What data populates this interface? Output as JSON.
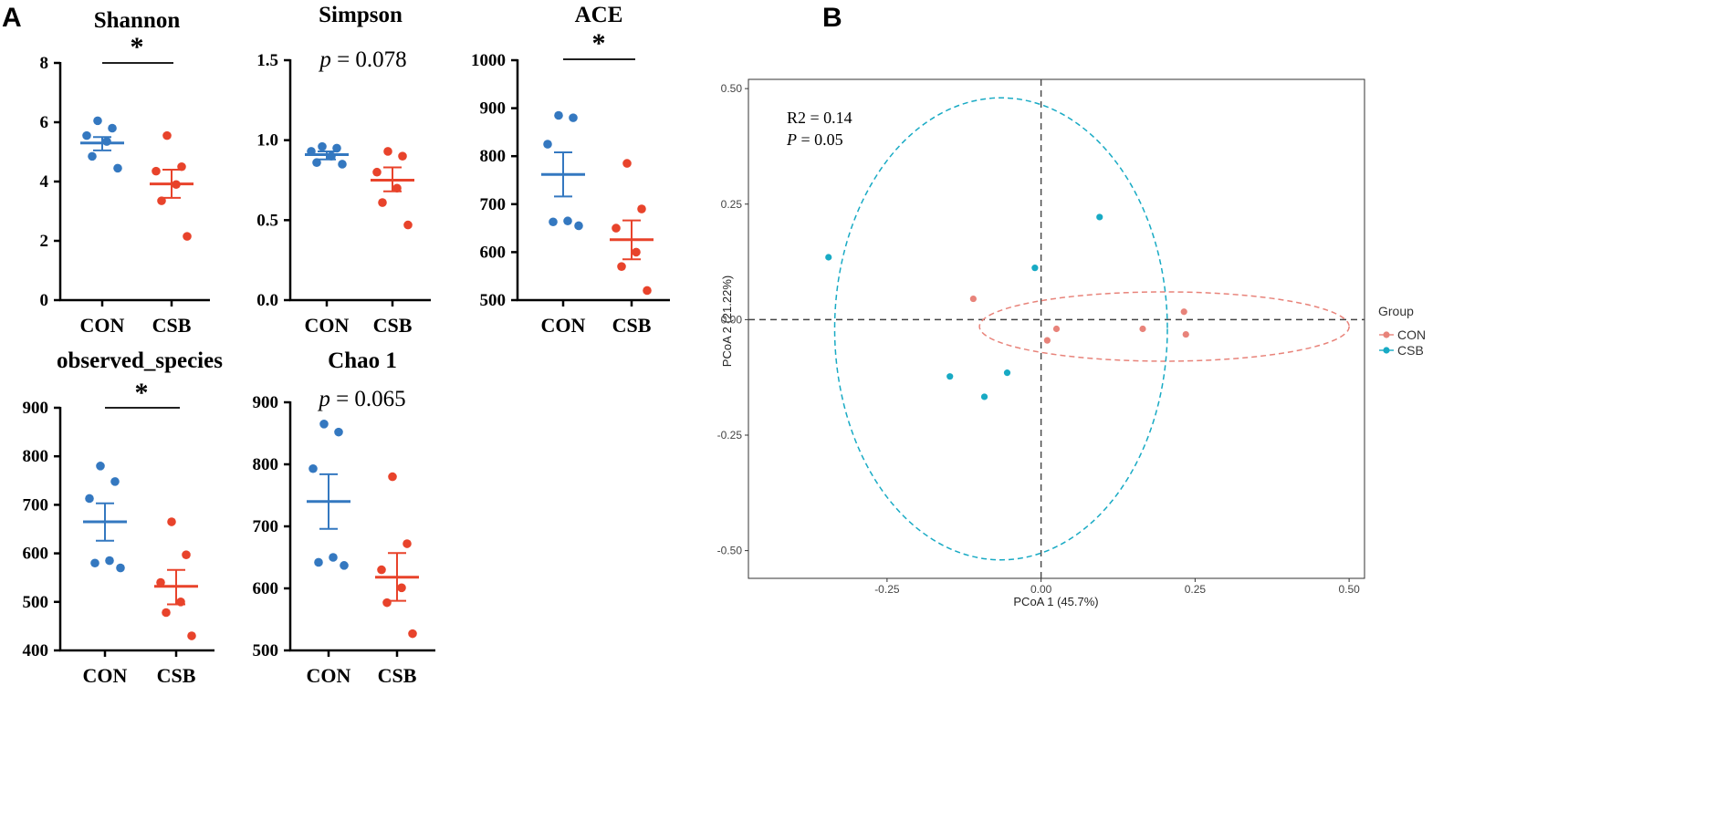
{
  "panels": {
    "a_label": "A",
    "b_label": "B"
  },
  "colors": {
    "con_dot": "#3478c0",
    "csb_dot": "#e8432b",
    "pcoa_con": "#e8837a",
    "pcoa_csb": "#18aac4"
  },
  "chart_data": [
    {
      "type": "scatter",
      "id": "shannon",
      "title": "Shannon",
      "categories": [
        "CON",
        "CSB"
      ],
      "ylim": [
        0,
        8
      ],
      "yticks": [
        "0",
        "2",
        "4",
        "6",
        "8"
      ],
      "tick_values": [
        0,
        2,
        4,
        6,
        8
      ],
      "series": [
        {
          "name": "CON",
          "values": [
            6.05,
            5.8,
            5.55,
            5.35,
            4.85,
            4.45
          ],
          "mean": 5.3,
          "sem_low": 5.05,
          "sem_high": 5.5
        },
        {
          "name": "CSB",
          "values": [
            5.55,
            4.5,
            4.35,
            3.9,
            3.35,
            2.15
          ],
          "mean": 3.92,
          "sem_low": 3.45,
          "sem_high": 4.4
        }
      ],
      "annotation": "*",
      "significance_bar": true
    },
    {
      "type": "scatter",
      "id": "simpson",
      "title": "Simpson",
      "categories": [
        "CON",
        "CSB"
      ],
      "ylim": [
        0.0,
        1.5
      ],
      "yticks": [
        "0.0",
        "0.5",
        "1.0",
        "1.5"
      ],
      "tick_values": [
        0.0,
        0.5,
        1.0,
        1.5
      ],
      "series": [
        {
          "name": "CON",
          "values": [
            0.96,
            0.95,
            0.93,
            0.9,
            0.86,
            0.85
          ],
          "mean": 0.91,
          "sem_low": 0.88,
          "sem_high": 0.93
        },
        {
          "name": "CSB",
          "values": [
            0.93,
            0.9,
            0.8,
            0.7,
            0.61,
            0.47
          ],
          "mean": 0.75,
          "sem_low": 0.68,
          "sem_high": 0.83
        }
      ],
      "annotation_p": "p",
      "annotation_rest": " = 0.078",
      "significance_bar": false
    },
    {
      "type": "scatter",
      "id": "ace",
      "title": "ACE",
      "categories": [
        "CON",
        "CSB"
      ],
      "ylim": [
        500,
        1000
      ],
      "yticks": [
        "500",
        "600",
        "700",
        "800",
        "900",
        "1000"
      ],
      "tick_values": [
        500,
        600,
        700,
        800,
        900,
        1000
      ],
      "series": [
        {
          "name": "CON",
          "values": [
            885,
            880,
            825,
            665,
            663,
            655
          ],
          "mean": 762,
          "sem_low": 716,
          "sem_high": 808
        },
        {
          "name": "CSB",
          "values": [
            785,
            690,
            650,
            600,
            570,
            520
          ],
          "mean": 626,
          "sem_low": 585,
          "sem_high": 666
        }
      ],
      "annotation": "*",
      "significance_bar": true
    },
    {
      "type": "scatter",
      "id": "observed_species",
      "title": "observed_species",
      "categories": [
        "CON",
        "CSB"
      ],
      "ylim": [
        400,
        900
      ],
      "yticks": [
        "400",
        "500",
        "600",
        "700",
        "800",
        "900"
      ],
      "tick_values": [
        400,
        500,
        600,
        700,
        800,
        900
      ],
      "series": [
        {
          "name": "CON",
          "values": [
            780,
            748,
            713,
            585,
            580,
            570
          ],
          "mean": 665,
          "sem_low": 626,
          "sem_high": 703
        },
        {
          "name": "CSB",
          "values": [
            665,
            597,
            540,
            500,
            478,
            430
          ],
          "mean": 532,
          "sem_low": 495,
          "sem_high": 566
        }
      ],
      "annotation": "*",
      "significance_bar": true
    },
    {
      "type": "scatter",
      "id": "chao1",
      "title": "Chao 1",
      "categories": [
        "CON",
        "CSB"
      ],
      "ylim": [
        500,
        900
      ],
      "yticks": [
        "500",
        "600",
        "700",
        "800",
        "900"
      ],
      "tick_values": [
        500,
        600,
        700,
        800,
        900
      ],
      "series": [
        {
          "name": "CON",
          "values": [
            865,
            852,
            793,
            650,
            642,
            637
          ],
          "mean": 740,
          "sem_low": 696,
          "sem_high": 784
        },
        {
          "name": "CSB",
          "values": [
            780,
            672,
            630,
            601,
            577,
            527
          ],
          "mean": 618,
          "sem_low": 580,
          "sem_high": 657
        }
      ],
      "annotation_p": "p",
      "annotation_rest": " = 0.065",
      "significance_bar": false
    },
    {
      "type": "scatter",
      "id": "pcoa",
      "xlabel": "PCoA 1 (45.7%)",
      "ylabel": "PCoA 2 (21.22%)",
      "xlim": [
        -0.475,
        0.525
      ],
      "ylim": [
        -0.56,
        0.52
      ],
      "xticks": [
        "-0.25",
        "0.00",
        "0.25",
        "0.50"
      ],
      "xtick_values": [
        -0.25,
        0.0,
        0.25,
        0.5
      ],
      "yticks": [
        "-0.50",
        "-0.25",
        "0.00",
        "0.25",
        "0.50"
      ],
      "ytick_values": [
        -0.5,
        -0.25,
        0.0,
        0.25,
        0.5
      ],
      "annotation_line1": "R2 = 0.14",
      "annotation_p": "P",
      "annotation_rest": " = 0.05",
      "legend_title": "Group",
      "legend_position": "right",
      "series": [
        {
          "name": "CON",
          "points": [
            [
              -0.11,
              0.045
            ],
            [
              0.025,
              -0.02
            ],
            [
              0.01,
              -0.045
            ],
            [
              0.165,
              -0.02
            ],
            [
              0.232,
              0.017
            ],
            [
              0.235,
              -0.032
            ]
          ]
        },
        {
          "name": "CSB",
          "points": [
            [
              -0.345,
              0.135
            ],
            [
              0.095,
              0.222
            ],
            [
              -0.01,
              0.112
            ],
            [
              -0.148,
              -0.123
            ],
            [
              -0.055,
              -0.115
            ],
            [
              -0.092,
              -0.167
            ]
          ]
        }
      ],
      "ellipses": [
        {
          "group": "CON",
          "center": [
            0.2,
            -0.015
          ],
          "radii": [
            0.3,
            0.075
          ],
          "angle_deg": 0
        },
        {
          "group": "CSB",
          "center": [
            -0.065,
            -0.02
          ],
          "radii": [
            0.27,
            0.5
          ],
          "angle_deg": 0
        }
      ]
    }
  ]
}
